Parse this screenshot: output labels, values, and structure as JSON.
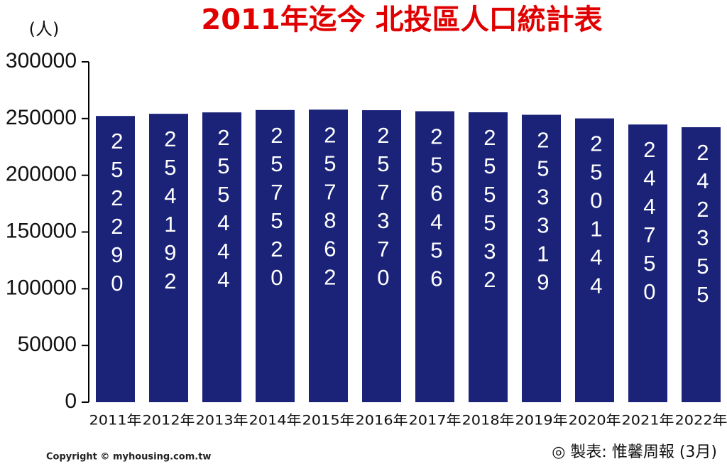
{
  "chart_data": {
    "type": "bar",
    "title": "2011年迄今 北投區人口統計表",
    "unit_label": "(人)",
    "categories": [
      "2011年",
      "2012年",
      "2013年",
      "2014年",
      "2015年",
      "2016年",
      "2017年",
      "2018年",
      "2019年",
      "2020年",
      "2021年",
      "2022年"
    ],
    "values": [
      252290,
      254192,
      255444,
      257520,
      257862,
      257370,
      256456,
      255532,
      253319,
      250144,
      244750,
      242355
    ],
    "color": "#1b2379",
    "ylim": [
      0,
      300000
    ],
    "yticks": [
      0,
      50000,
      100000,
      150000,
      200000,
      250000,
      300000
    ],
    "grid": false,
    "copyright": "Copyright © myhousing.com.tw",
    "source": "◎ 製表: 惟馨周報 (3月)"
  }
}
